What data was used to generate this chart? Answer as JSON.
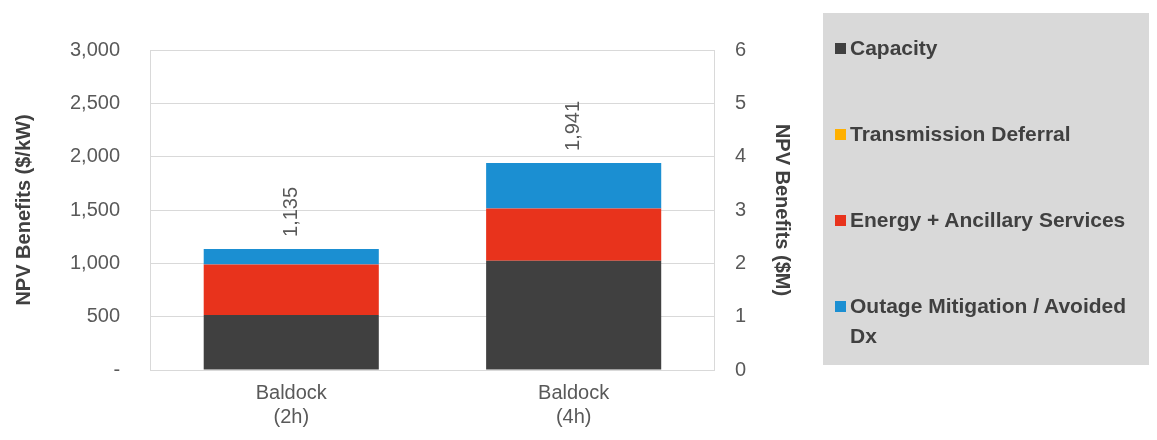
{
  "chart_data": {
    "type": "bar",
    "stacked": true,
    "ylabel": "NPV Benefits ($/kW)",
    "y2label": "NPV Benefits ($M)",
    "categories": [
      "Baldock\n(2h)",
      "Baldock\n(4h)"
    ],
    "series": [
      {
        "name": "Capacity",
        "color": "#404040",
        "values": [
          515,
          1025
        ]
      },
      {
        "name": "Transmission Deferral",
        "color": "#ffb000",
        "values": [
          0,
          0
        ]
      },
      {
        "name": "Energy + Ancillary Services",
        "color": "#e8331c",
        "values": [
          475,
          488
        ]
      },
      {
        "name": "Outage Mitigation / Avoided Dx",
        "color": "#1b8fd2",
        "values": [
          145,
          428
        ]
      }
    ],
    "totals": [
      "1,135",
      "1,941"
    ],
    "ylim": [
      0,
      3000
    ],
    "yticks": [
      {
        "value": 0,
        "label": "-"
      },
      {
        "value": 500,
        "label": "500"
      },
      {
        "value": 1000,
        "label": "1,000"
      },
      {
        "value": 1500,
        "label": "1,500"
      },
      {
        "value": 2000,
        "label": "2,000"
      },
      {
        "value": 2500,
        "label": "2,500"
      },
      {
        "value": 3000,
        "label": "3,000"
      }
    ],
    "y2lim": [
      0,
      6
    ],
    "y2ticks": [
      0,
      1,
      2,
      3,
      4,
      5,
      6
    ],
    "grid": "y",
    "legend": "right"
  }
}
